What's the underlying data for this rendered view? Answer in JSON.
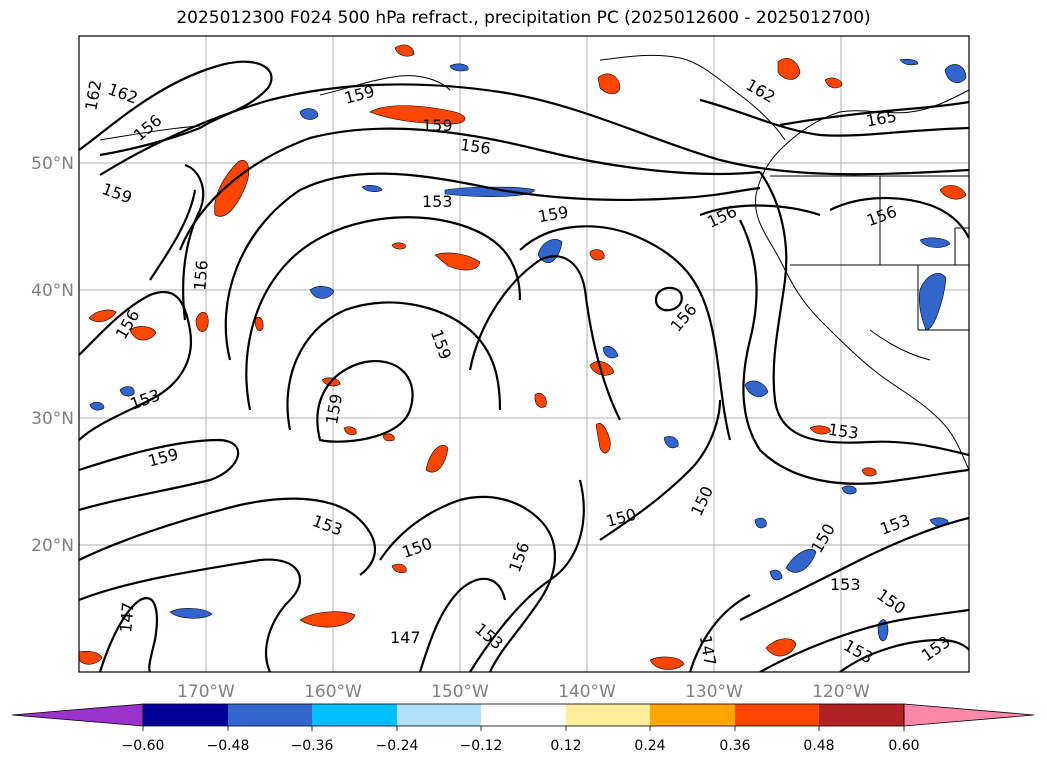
{
  "title": "2025012300 F024 500 hPa refract., precipitation PC (2025012600 - 2025012700)",
  "lat_labels": [
    "50°N",
    "40°N",
    "30°N",
    "20°N"
  ],
  "lon_labels": [
    "170°W",
    "160°W",
    "150°W",
    "140°W",
    "130°W",
    "120°W"
  ],
  "contour_labels": [
    "162",
    "162",
    "156",
    "159",
    "159",
    "156",
    "159",
    "153",
    "159",
    "156",
    "156",
    "156",
    "159",
    "153",
    "159",
    "159",
    "156",
    "153",
    "150",
    "150",
    "150",
    "153",
    "156",
    "147",
    "147",
    "147",
    "153",
    "150",
    "153",
    "153",
    "153",
    "165",
    "162",
    "150",
    "156",
    "153"
  ],
  "colorbar": {
    "colors": [
      "#9933cc",
      "#000099",
      "#3366cc",
      "#00bfff",
      "#b0e0fa",
      "#ffffff",
      "#ffee99",
      "#ffa500",
      "#ff4500",
      "#b22222",
      "#ff88aa"
    ],
    "tick_labels": [
      "−0.60",
      "−0.48",
      "−0.36",
      "−0.24",
      "−0.12",
      "0.12",
      "0.24",
      "0.36",
      "0.48",
      "0.60"
    ]
  }
}
